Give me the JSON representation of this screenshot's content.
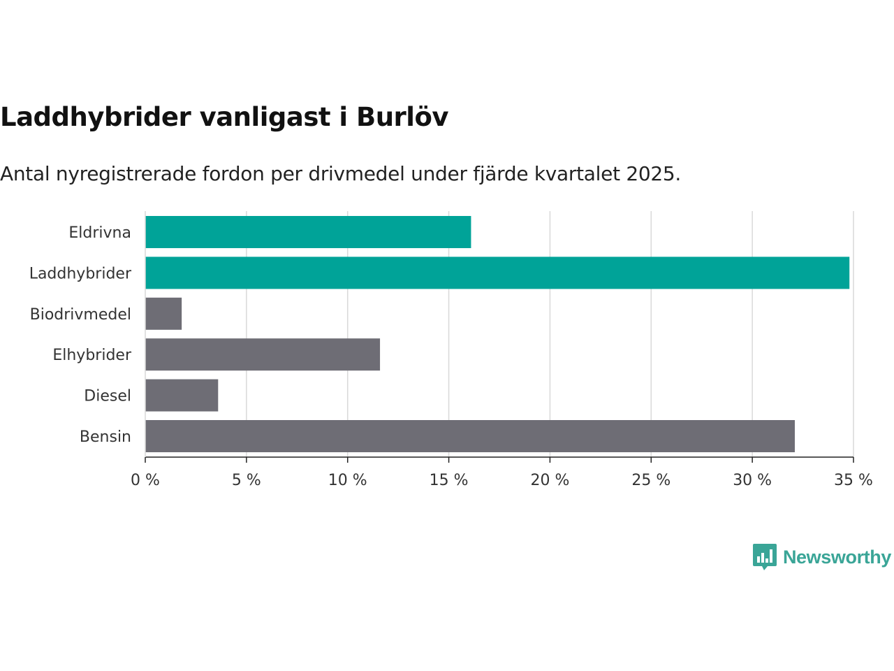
{
  "chart_data": {
    "type": "bar",
    "orientation": "horizontal",
    "title": "Laddhybrider vanligast i Burlöv",
    "subtitle": "Antal nyregistrerade fordon per drivmedel under fjärde kvartalet 2025.",
    "categories": [
      "Eldrivna",
      "Laddhybrider",
      "Biodrivmedel",
      "Elhybrider",
      "Diesel",
      "Bensin"
    ],
    "values": [
      16.1,
      34.8,
      1.8,
      11.6,
      3.6,
      32.1
    ],
    "bar_colors": [
      "#00a398",
      "#00a398",
      "#6e6d75",
      "#6e6d75",
      "#6e6d75",
      "#6e6d75"
    ],
    "xlim": [
      0,
      35
    ],
    "xticks": [
      0,
      5,
      10,
      15,
      20,
      25,
      30,
      35
    ],
    "xtick_labels": [
      "0 %",
      "5 %",
      "10 %",
      "15 %",
      "20 %",
      "25 %",
      "30 %",
      "35 %"
    ],
    "xlabel": "",
    "ylabel": "",
    "grid": true,
    "gridline_color": "#d9d9d9",
    "axis_color": "#222222",
    "label_color": "#333333"
  },
  "brand": {
    "name": "Newsworthy",
    "icon": "bar-chart-speech-bubble-icon",
    "color": "#3aa597"
  }
}
